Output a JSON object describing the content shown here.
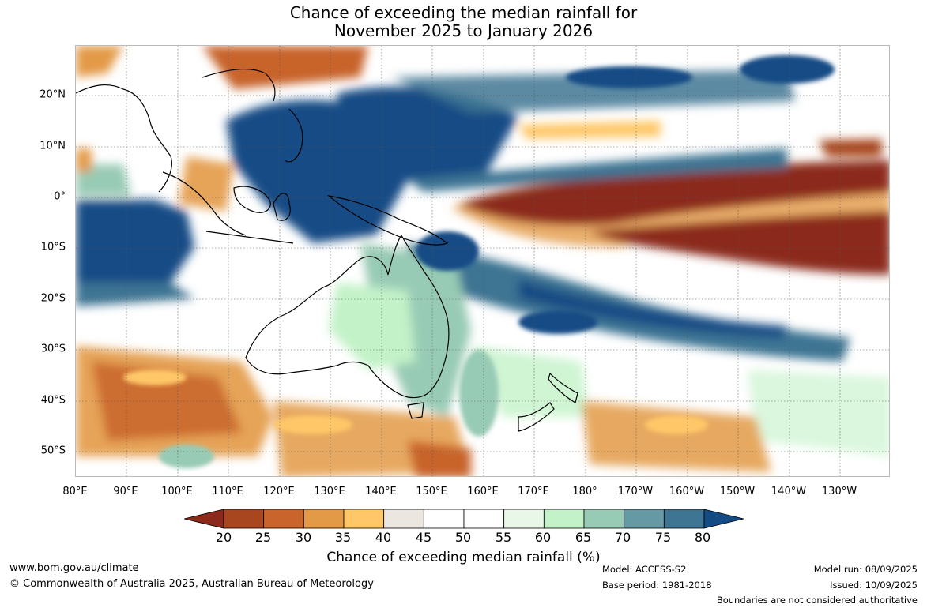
{
  "title": {
    "line1": "Chance of exceeding the median rainfall for",
    "line2": "November 2025 to January 2026"
  },
  "axes": {
    "lon_labels": [
      "80°E",
      "90°E",
      "100°E",
      "110°E",
      "120°E",
      "130°E",
      "140°E",
      "150°E",
      "160°E",
      "170°E",
      "180°",
      "170°W",
      "160°W",
      "150°W",
      "140°W",
      "130°W"
    ],
    "lat_labels": [
      "20°N",
      "10°N",
      "0°",
      "10°S",
      "20°S",
      "30°S",
      "40°S",
      "50°S"
    ]
  },
  "colorbar": {
    "title": "Chance of exceeding median rainfall (%)",
    "tick_labels": [
      "20",
      "25",
      "30",
      "35",
      "40",
      "45",
      "50",
      "55",
      "60",
      "65",
      "70",
      "75",
      "80"
    ],
    "colors": [
      "#8b2a1a",
      "#a8461f",
      "#c8642c",
      "#e39a47",
      "#ffc767",
      "#ebe6df",
      "#ffffff",
      "#ffffff",
      "#e8f7e8",
      "#c3f2c8",
      "#98cbb5",
      "#6599a3",
      "#3e7593",
      "#154b85"
    ]
  },
  "footer": {
    "website": "www.bom.gov.au/climate",
    "copyright": "© Commonwealth of Australia 2025, Australian Bureau of Meteorology",
    "model": "Model: ACCESS-S2",
    "base_period": "Base period: 1981-2018",
    "model_run": "Model run: 08/09/2025",
    "issued": "Issued: 10/09/2025",
    "disclaimer": "Boundaries are not considered authoritative"
  }
}
